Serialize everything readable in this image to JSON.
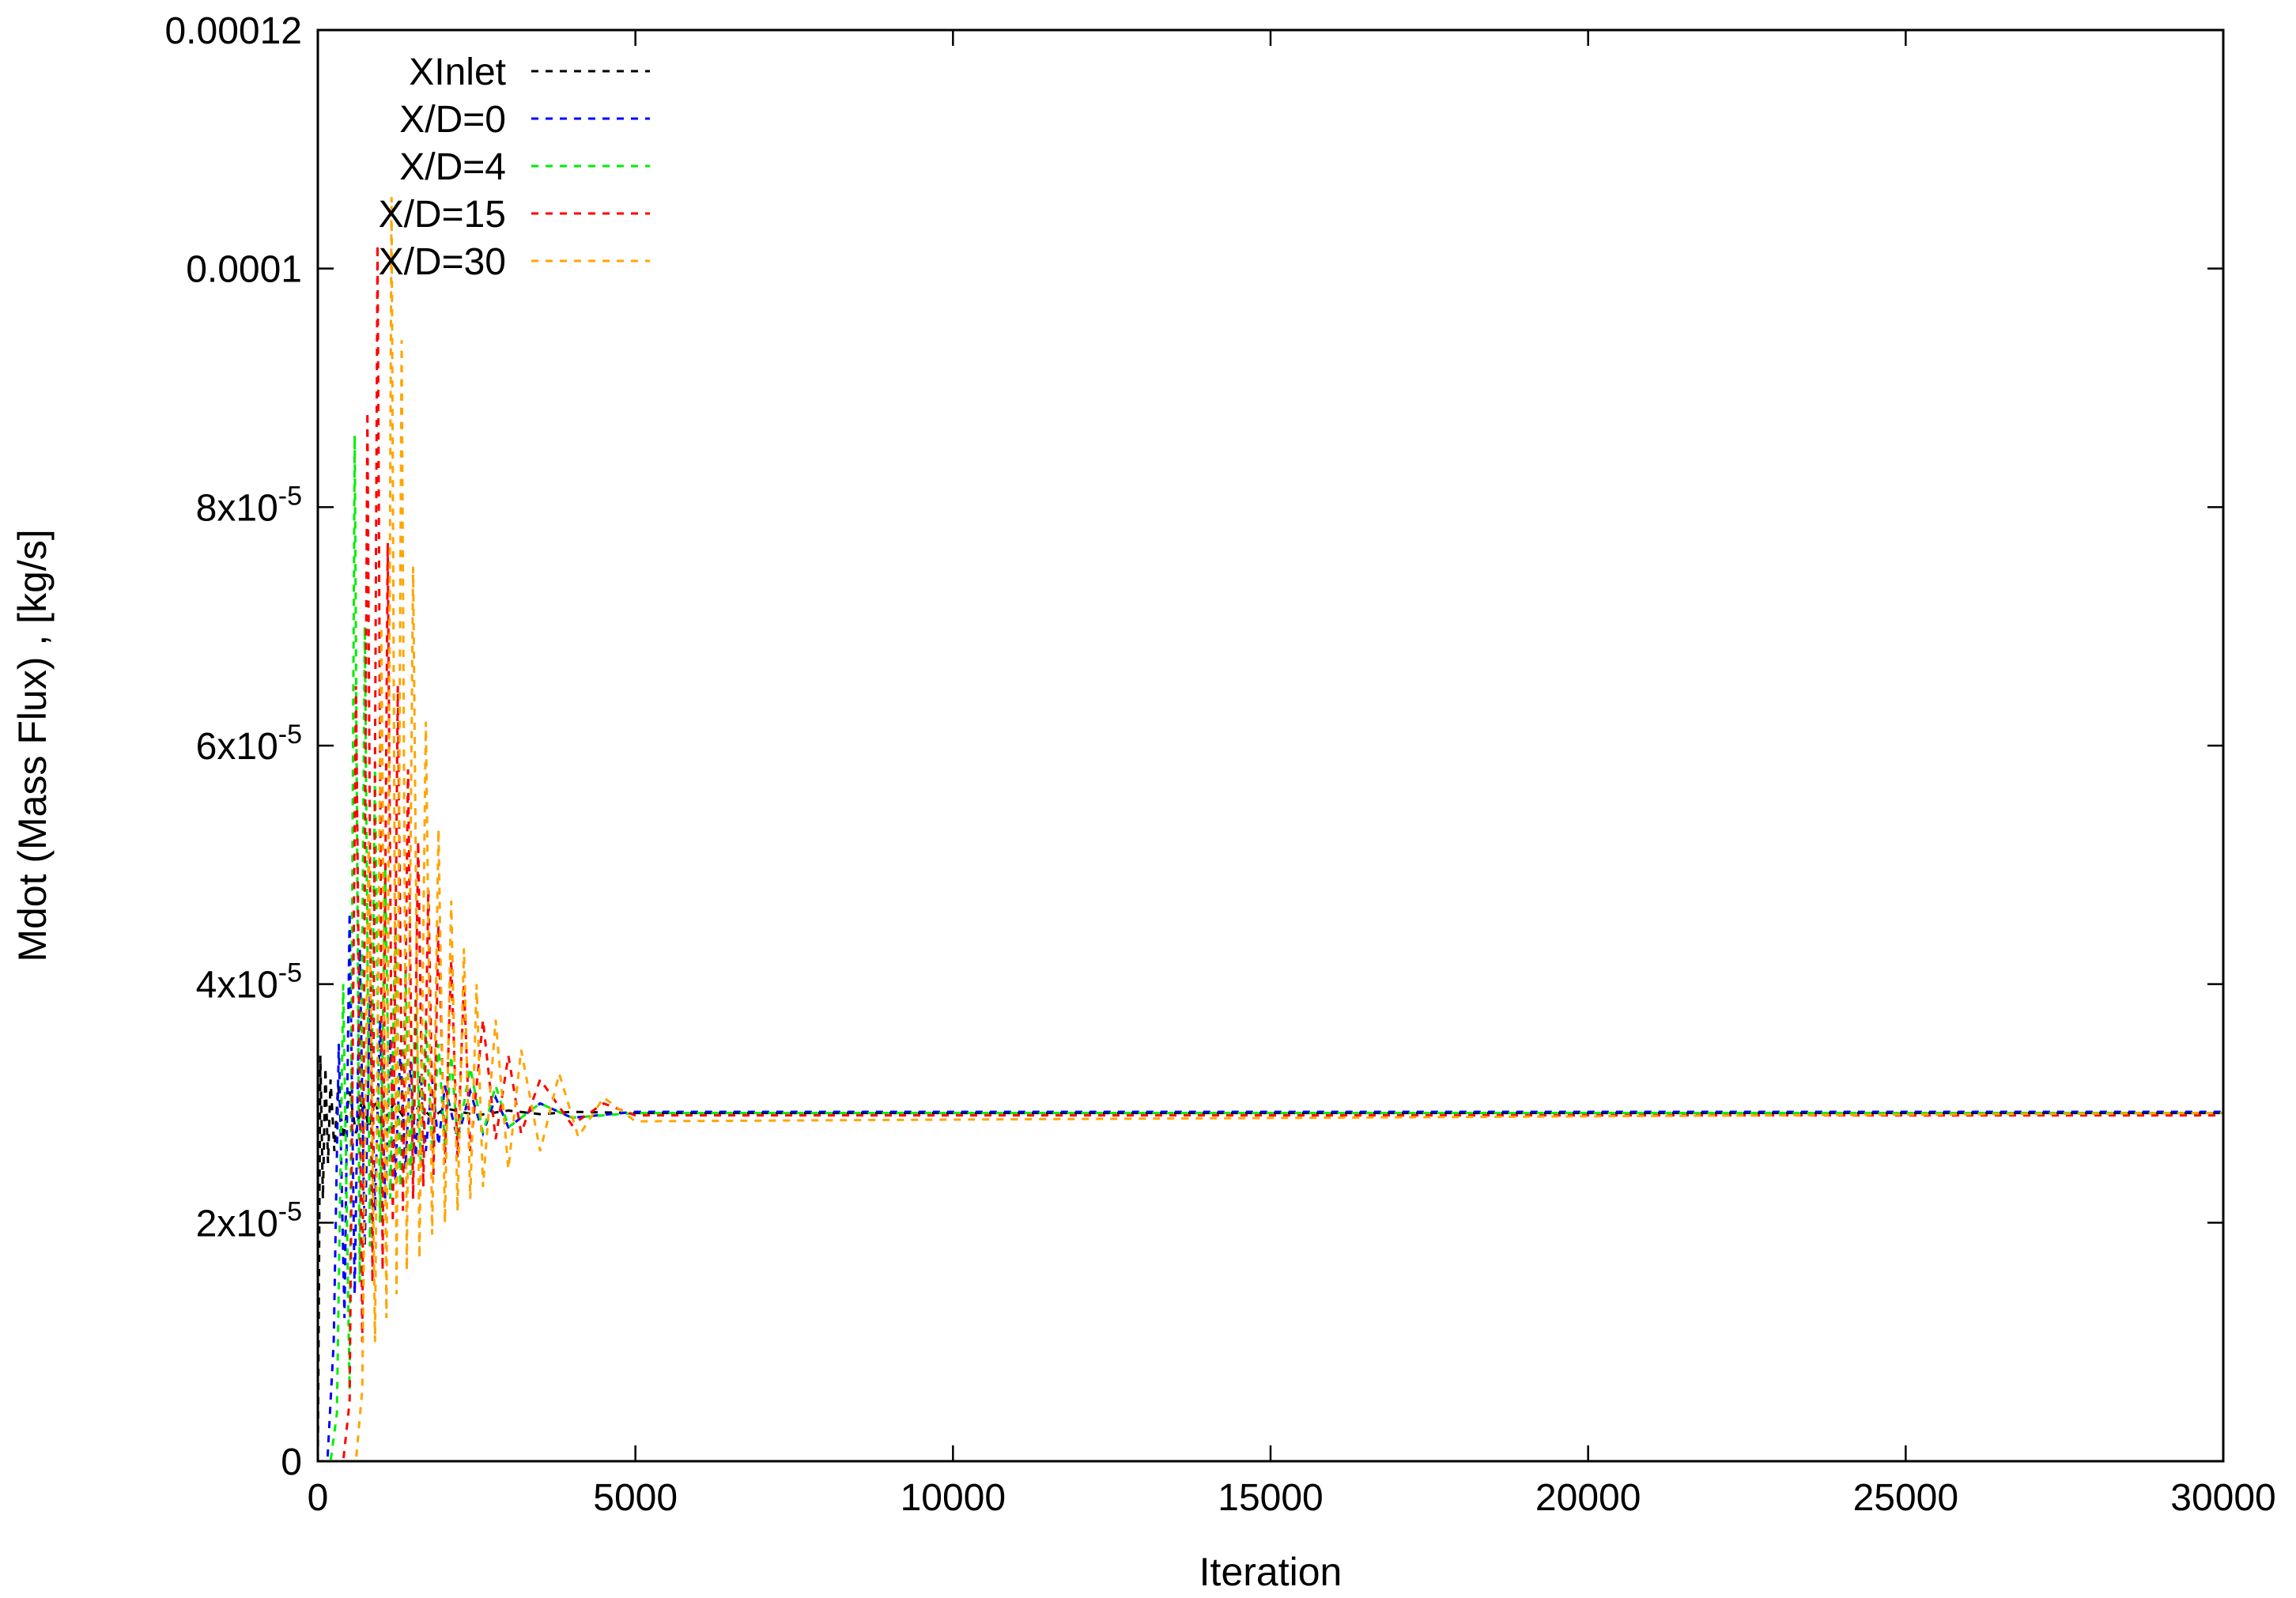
{
  "chart_data": {
    "type": "line",
    "title": "",
    "xlabel": "Iteration",
    "ylabel": "Mdot (Mass Flux) , [kg/s]",
    "xlim": [
      0,
      30000
    ],
    "ylim": [
      0,
      0.00012
    ],
    "grid": false,
    "legend_position": "top-left",
    "x_ticks": [
      {
        "value": 0,
        "label": "0"
      },
      {
        "value": 5000,
        "label": "5000"
      },
      {
        "value": 10000,
        "label": "10000"
      },
      {
        "value": 15000,
        "label": "15000"
      },
      {
        "value": 20000,
        "label": "20000"
      },
      {
        "value": 25000,
        "label": "25000"
      },
      {
        "value": 30000,
        "label": "30000"
      }
    ],
    "y_ticks": [
      {
        "value": 0,
        "label": "0",
        "exp": ""
      },
      {
        "value": 2e-05,
        "label": "2x10",
        "exp": "-5"
      },
      {
        "value": 4e-05,
        "label": "4x10",
        "exp": "-5"
      },
      {
        "value": 6e-05,
        "label": "6x10",
        "exp": "-5"
      },
      {
        "value": 8e-05,
        "label": "8x10",
        "exp": "-5"
      },
      {
        "value": 0.0001,
        "label": "0.0001",
        "exp": ""
      },
      {
        "value": 0.00012,
        "label": "0.00012",
        "exp": ""
      }
    ],
    "series": [
      {
        "name": "XInlet",
        "color": "#000000",
        "x": [
          0,
          40,
          80,
          120,
          160,
          200,
          260,
          320,
          400,
          500,
          600,
          700,
          800,
          900,
          1000,
          1200,
          1400,
          1600,
          1800,
          2000,
          2500,
          3000,
          3500,
          4000,
          5000,
          30000
        ],
        "y": [
          0,
          3.4e-05,
          2.2e-05,
          3.3e-05,
          2.5e-05,
          3.2e-05,
          2.6e-05,
          3.15e-05,
          2.7e-05,
          3.1e-05,
          2.75e-05,
          3.05e-05,
          2.8e-05,
          3.03e-05,
          2.82e-05,
          3e-05,
          2.85e-05,
          2.98e-05,
          2.88e-05,
          2.96e-05,
          2.9e-05,
          2.94e-05,
          2.91e-05,
          2.93e-05,
          2.92e-05,
          2.92e-05
        ]
      },
      {
        "name": "X/D=0",
        "color": "#0000ff",
        "x": [
          0,
          150,
          250,
          330,
          420,
          500,
          580,
          660,
          740,
          820,
          900,
          980,
          1060,
          1140,
          1220,
          1300,
          1380,
          1460,
          1540,
          1620,
          1700,
          1800,
          1900,
          2000,
          2200,
          2400,
          2600,
          2800,
          3000,
          3500,
          4000,
          5000,
          30000
        ],
        "y": [
          0,
          0,
          1e-05,
          3.5e-05,
          1.2e-05,
          4.6e-05,
          1.4e-05,
          4.3e-05,
          1.8e-05,
          3.9e-05,
          2.1e-05,
          3.7e-05,
          2.2e-05,
          3.55e-05,
          2.35e-05,
          3.45e-05,
          2.45e-05,
          3.35e-05,
          2.55e-05,
          3.25e-05,
          2.6e-05,
          3.2e-05,
          2.65e-05,
          3.15e-05,
          2.7e-05,
          3.1e-05,
          2.75e-05,
          3.05e-05,
          2.8e-05,
          3e-05,
          2.88e-05,
          2.93e-05,
          2.93e-05
        ]
      },
      {
        "name": "X/D=4",
        "color": "#00ee00",
        "x": [
          0,
          200,
          300,
          400,
          500,
          580,
          660,
          740,
          820,
          900,
          980,
          1060,
          1140,
          1220,
          1300,
          1380,
          1460,
          1540,
          1620,
          1700,
          1800,
          1900,
          2000,
          2100,
          2200,
          2400,
          2600,
          2800,
          3000,
          3500,
          4000,
          5000,
          30000
        ],
        "y": [
          0,
          0,
          4e-06,
          4e-05,
          6e-06,
          8.6e-05,
          1.5e-05,
          7e-05,
          1.8e-05,
          5.8e-05,
          2e-05,
          5e-05,
          2.2e-05,
          4.5e-05,
          2.3e-05,
          4.1e-05,
          2.4e-05,
          3.9e-05,
          2.5e-05,
          3.7e-05,
          2.6e-05,
          3.5e-05,
          2.65e-05,
          3.4e-05,
          2.7e-05,
          3.3e-05,
          2.75e-05,
          3.15e-05,
          2.8e-05,
          3e-05,
          2.88e-05,
          2.92e-05,
          2.92e-05
        ]
      },
      {
        "name": "X/D=15",
        "color": "#ff0000",
        "x": [
          0,
          400,
          500,
          600,
          700,
          780,
          860,
          940,
          1020,
          1100,
          1180,
          1260,
          1340,
          1420,
          1500,
          1580,
          1660,
          1740,
          1820,
          1900,
          2000,
          2100,
          2200,
          2300,
          2400,
          2600,
          2800,
          3000,
          3200,
          3500,
          4000,
          4500,
          5000,
          30000
        ],
        "y": [
          0,
          0,
          5e-06,
          6.5e-05,
          1e-05,
          8.8e-05,
          1.5e-05,
          0.000102,
          1.6e-05,
          7.7e-05,
          2e-05,
          6.5e-05,
          2.1e-05,
          5.8e-05,
          2.2e-05,
          5.2e-05,
          2.3e-05,
          4.8e-05,
          2.4e-05,
          4.5e-05,
          2.5e-05,
          4.2e-05,
          2.55e-05,
          4e-05,
          2.6e-05,
          3.7e-05,
          2.7e-05,
          3.4e-05,
          2.75e-05,
          3.2e-05,
          2.82e-05,
          3e-05,
          2.9e-05,
          2.9e-05
        ]
      },
      {
        "name": "X/D=30",
        "color": "#ffa500",
        "x": [
          0,
          600,
          700,
          800,
          900,
          1000,
          1080,
          1160,
          1240,
          1320,
          1400,
          1500,
          1600,
          1700,
          1800,
          1900,
          2000,
          2100,
          2200,
          2300,
          2400,
          2500,
          2600,
          2800,
          3000,
          3200,
          3500,
          3800,
          4100,
          4500,
          5000,
          30000
        ],
        "y": [
          0,
          0,
          6e-06,
          5.2e-05,
          1e-05,
          7e-05,
          1.2e-05,
          0.000106,
          1.4e-05,
          9.4e-05,
          1.6e-05,
          7.5e-05,
          1.7e-05,
          6.2e-05,
          1.9e-05,
          5.3e-05,
          2e-05,
          4.7e-05,
          2.1e-05,
          4.3e-05,
          2.2e-05,
          4e-05,
          2.3e-05,
          3.7e-05,
          2.45e-05,
          3.45e-05,
          2.6e-05,
          3.25e-05,
          2.72e-05,
          3.05e-05,
          2.85e-05,
          2.92e-05
        ]
      }
    ]
  }
}
